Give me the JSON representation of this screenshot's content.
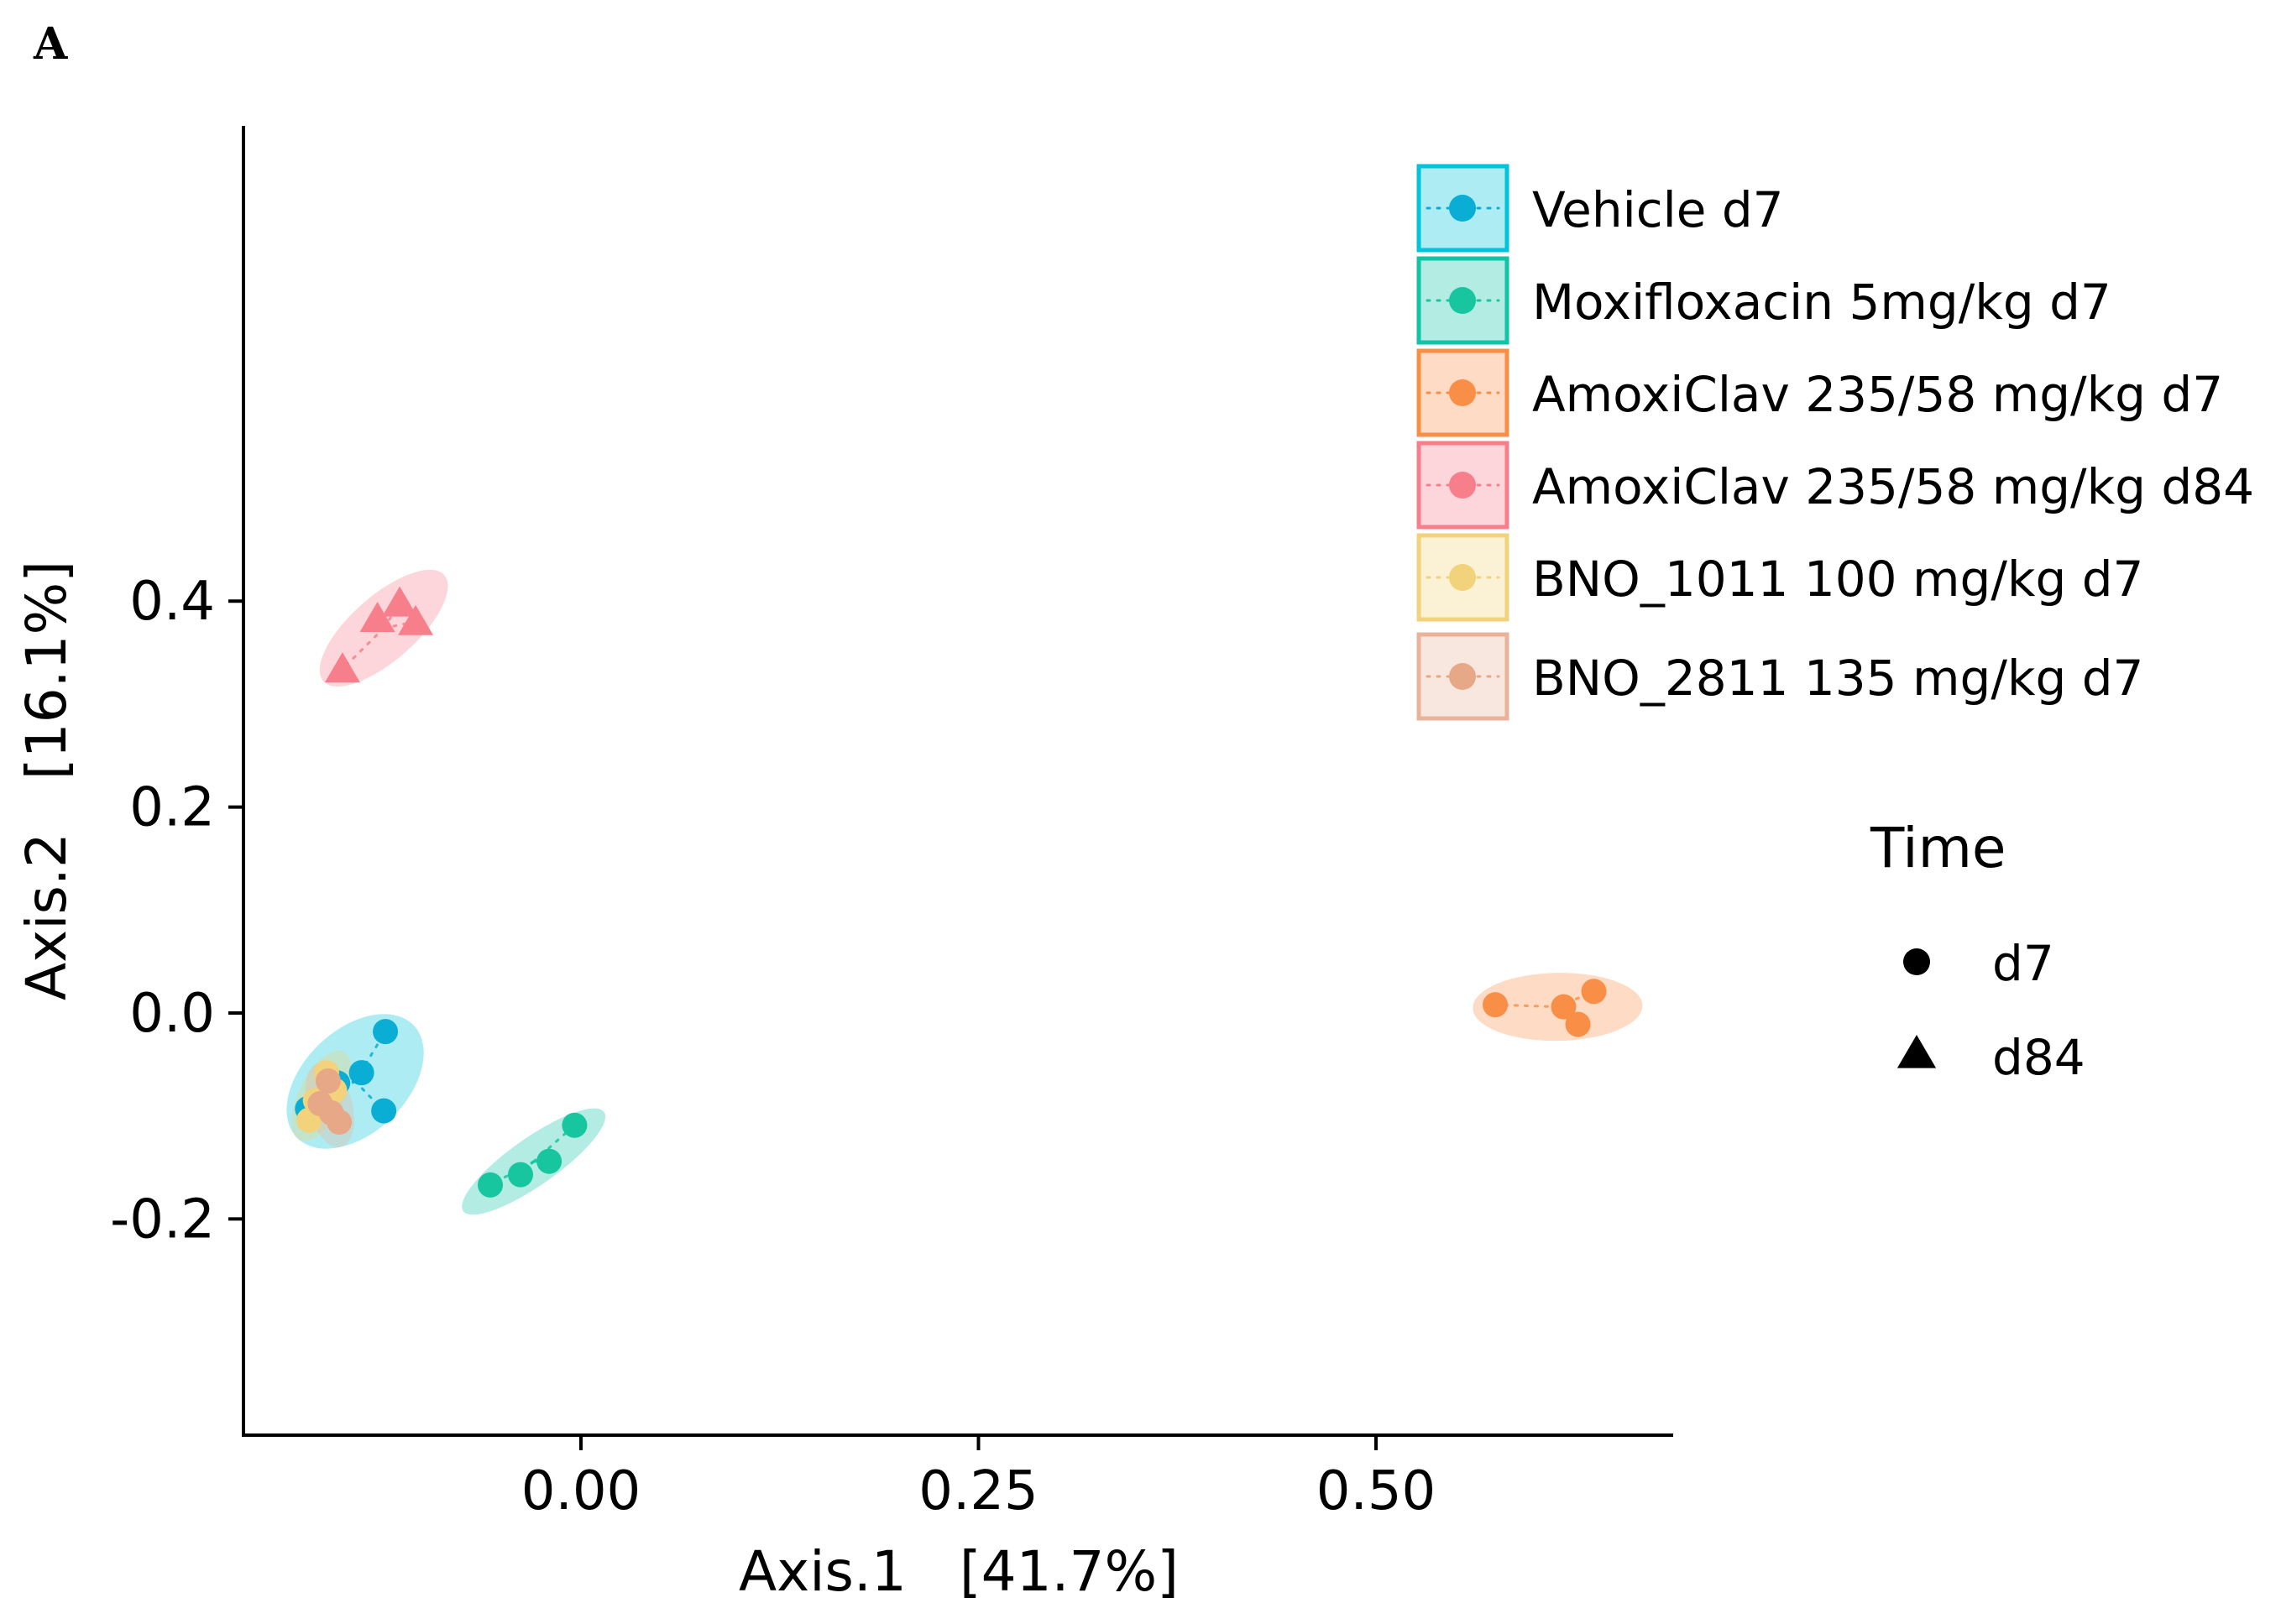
{
  "panel_label": "A",
  "chart_data": {
    "type": "scatter",
    "xlabel": "Axis.1   [41.7%]",
    "ylabel": "Axis.2   [16.1%]",
    "xlim": [
      -0.21,
      0.69
    ],
    "ylim": [
      -0.205,
      0.432
    ],
    "xticks": [
      0.0,
      0.25,
      0.5
    ],
    "xtick_labels": [
      "0.00",
      "0.25",
      "0.50"
    ],
    "yticks": [
      -0.2,
      0.0,
      0.2,
      0.4
    ],
    "ytick_labels": [
      "-0.2",
      "0.0",
      "0.2",
      "0.4"
    ],
    "grid": false,
    "legend": {
      "placement": "right",
      "group_title": "",
      "shape_title": "Time",
      "shape_entries": [
        {
          "label": "d7",
          "shape": "circle"
        },
        {
          "label": "d84",
          "shape": "triangle"
        }
      ]
    },
    "series": [
      {
        "name": "Vehicle d7",
        "color": "#00C5DA",
        "point_color": "#0AADD3",
        "shape": "circle",
        "ellipse": true,
        "points": [
          {
            "x": -0.123,
            "y": -0.018
          },
          {
            "x": -0.138,
            "y": -0.058
          },
          {
            "x": -0.124,
            "y": -0.095
          },
          {
            "x": -0.153,
            "y": -0.068
          },
          {
            "x": -0.172,
            "y": -0.093
          }
        ]
      },
      {
        "name": "Moxifloxacin 5mg/kg d7",
        "color": "#10C5A7",
        "point_color": "#17C69F",
        "shape": "circle",
        "ellipse": true,
        "points": [
          {
            "x": -0.057,
            "y": -0.167
          },
          {
            "x": -0.038,
            "y": -0.157
          },
          {
            "x": -0.02,
            "y": -0.144
          },
          {
            "x": -0.004,
            "y": -0.109
          }
        ]
      },
      {
        "name": "AmoxiClav  235/58 mg/kg d7",
        "color": "#F98F46",
        "point_color": "#F98F46",
        "shape": "circle",
        "ellipse": true,
        "points": [
          {
            "x": 0.575,
            "y": 0.008
          },
          {
            "x": 0.618,
            "y": 0.006
          },
          {
            "x": 0.637,
            "y": 0.021
          },
          {
            "x": 0.627,
            "y": -0.011
          }
        ]
      },
      {
        "name": "AmoxiClav  235/58 mg/kg d84",
        "color": "#F77F8C",
        "point_color": "#F77F8C",
        "shape": "triangle",
        "ellipse": true,
        "points": [
          {
            "x": -0.15,
            "y": 0.334
          },
          {
            "x": -0.128,
            "y": 0.383
          },
          {
            "x": -0.114,
            "y": 0.398
          },
          {
            "x": -0.104,
            "y": 0.38
          }
        ]
      },
      {
        "name": "BNO_1011 100 mg/kg d7",
        "color": "#F2D27A",
        "point_color": "#F2D27A",
        "shape": "circle",
        "ellipse": true,
        "points": [
          {
            "x": -0.16,
            "y": -0.058
          },
          {
            "x": -0.167,
            "y": -0.085
          },
          {
            "x": -0.171,
            "y": -0.104
          },
          {
            "x": -0.155,
            "y": -0.075
          }
        ]
      },
      {
        "name": "BNO_2811 135 mg/kg d7",
        "color": "#E8B39A",
        "point_color": "#E7A888",
        "shape": "circle",
        "ellipse": true,
        "points": [
          {
            "x": -0.159,
            "y": -0.066
          },
          {
            "x": -0.152,
            "y": -0.106
          },
          {
            "x": -0.164,
            "y": -0.088
          },
          {
            "x": -0.157,
            "y": -0.097
          }
        ]
      }
    ]
  }
}
